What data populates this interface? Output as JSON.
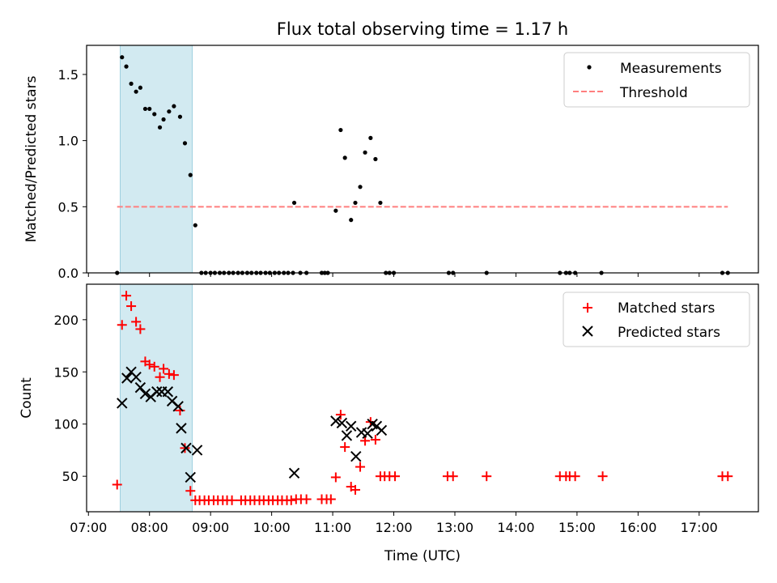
{
  "chart_data": {
    "type": "scatter",
    "title": "Flux total observing time = 1.17 h",
    "xlabel": "Time (UTC)",
    "x_unit": "hours UTC",
    "xlim": [
      6.97,
      17.97
    ],
    "x_ticks": [
      {
        "value": 7,
        "label": "07:00"
      },
      {
        "value": 8,
        "label": "08:00"
      },
      {
        "value": 9,
        "label": "09:00"
      },
      {
        "value": 10,
        "label": "10:00"
      },
      {
        "value": 11,
        "label": "11:00"
      },
      {
        "value": 12,
        "label": "12:00"
      },
      {
        "value": 13,
        "label": "13:00"
      },
      {
        "value": 14,
        "label": "14:00"
      },
      {
        "value": 15,
        "label": "15:00"
      },
      {
        "value": 16,
        "label": "16:00"
      },
      {
        "value": 17,
        "label": "17:00"
      }
    ],
    "shaded_span": [
      7.52,
      8.7
    ],
    "panels": [
      {
        "ylabel": "Matched/Predicted stars",
        "ylim": [
          0,
          1.72
        ],
        "y_ticks": [
          {
            "value": 0,
            "label": "0.0"
          },
          {
            "value": 0.5,
            "label": "0.5"
          },
          {
            "value": 1.0,
            "label": "1.0"
          },
          {
            "value": 1.5,
            "label": "1.5"
          }
        ],
        "legend": {
          "position": "top-right",
          "entries": [
            "Measurements",
            "Threshold"
          ]
        },
        "threshold": {
          "name": "Threshold",
          "value": 0.5,
          "x_range": [
            7.47,
            17.47
          ],
          "color": "#ff7f7f"
        },
        "series": [
          {
            "name": "Measurements",
            "marker": "dot",
            "color": "#000000",
            "points": [
              [
                7.47,
                0
              ],
              [
                7.55,
                1.63
              ],
              [
                7.62,
                1.56
              ],
              [
                7.7,
                1.43
              ],
              [
                7.78,
                1.37
              ],
              [
                7.85,
                1.4
              ],
              [
                7.93,
                1.24
              ],
              [
                8.0,
                1.24
              ],
              [
                8.08,
                1.2
              ],
              [
                8.17,
                1.1
              ],
              [
                8.23,
                1.16
              ],
              [
                8.32,
                1.22
              ],
              [
                8.4,
                1.26
              ],
              [
                8.5,
                1.18
              ],
              [
                8.58,
                0.98
              ],
              [
                8.67,
                0.74
              ],
              [
                8.75,
                0.36
              ],
              [
                8.85,
                0
              ],
              [
                8.92,
                0
              ],
              [
                9.0,
                0
              ],
              [
                9.07,
                0
              ],
              [
                9.15,
                0
              ],
              [
                9.22,
                0
              ],
              [
                9.3,
                0
              ],
              [
                9.37,
                0
              ],
              [
                9.45,
                0
              ],
              [
                9.52,
                0
              ],
              [
                9.6,
                0
              ],
              [
                9.67,
                0
              ],
              [
                9.75,
                0
              ],
              [
                9.82,
                0
              ],
              [
                9.9,
                0
              ],
              [
                9.97,
                0
              ],
              [
                10.05,
                0
              ],
              [
                10.12,
                0
              ],
              [
                10.2,
                0
              ],
              [
                10.27,
                0
              ],
              [
                10.35,
                0
              ],
              [
                10.37,
                0.53
              ],
              [
                10.47,
                0
              ],
              [
                10.57,
                0
              ],
              [
                10.82,
                0
              ],
              [
                10.87,
                0
              ],
              [
                10.92,
                0
              ],
              [
                11.05,
                0.47
              ],
              [
                11.13,
                1.08
              ],
              [
                11.2,
                0.87
              ],
              [
                11.3,
                0.4
              ],
              [
                11.37,
                0.53
              ],
              [
                11.45,
                0.65
              ],
              [
                11.53,
                0.91
              ],
              [
                11.62,
                1.02
              ],
              [
                11.7,
                0.86
              ],
              [
                11.78,
                0.53
              ],
              [
                11.87,
                0
              ],
              [
                11.93,
                0
              ],
              [
                12.0,
                0
              ],
              [
                12.9,
                0
              ],
              [
                12.97,
                0
              ],
              [
                13.52,
                0
              ],
              [
                14.72,
                0
              ],
              [
                14.82,
                0
              ],
              [
                14.88,
                0
              ],
              [
                14.97,
                0
              ],
              [
                15.4,
                0
              ],
              [
                17.38,
                0
              ],
              [
                17.47,
                0
              ]
            ]
          }
        ]
      },
      {
        "ylabel": "Count",
        "ylim": [
          16,
          234
        ],
        "y_ticks": [
          {
            "value": 50,
            "label": "50"
          },
          {
            "value": 100,
            "label": "100"
          },
          {
            "value": 150,
            "label": "150"
          },
          {
            "value": 200,
            "label": "200"
          }
        ],
        "legend": {
          "position": "top-right",
          "entries": [
            "Matched stars",
            "Predicted stars"
          ]
        },
        "series": [
          {
            "name": "Matched stars",
            "marker": "plus",
            "color": "#ff0000",
            "points": [
              [
                7.47,
                42
              ],
              [
                7.55,
                195
              ],
              [
                7.62,
                223
              ],
              [
                7.7,
                213
              ],
              [
                7.78,
                198
              ],
              [
                7.85,
                191
              ],
              [
                7.93,
                160
              ],
              [
                8.0,
                157
              ],
              [
                8.08,
                155
              ],
              [
                8.17,
                145
              ],
              [
                8.23,
                153
              ],
              [
                8.32,
                148
              ],
              [
                8.4,
                147
              ],
              [
                8.5,
                113
              ],
              [
                8.58,
                77
              ],
              [
                8.67,
                36
              ],
              [
                8.75,
                27
              ],
              [
                8.82,
                27
              ],
              [
                8.9,
                27
              ],
              [
                8.97,
                27
              ],
              [
                9.05,
                27
              ],
              [
                9.12,
                27
              ],
              [
                9.2,
                27
              ],
              [
                9.27,
                27
              ],
              [
                9.35,
                27
              ],
              [
                9.5,
                27
              ],
              [
                9.57,
                27
              ],
              [
                9.65,
                27
              ],
              [
                9.72,
                27
              ],
              [
                9.8,
                27
              ],
              [
                9.87,
                27
              ],
              [
                9.95,
                27
              ],
              [
                10.02,
                27
              ],
              [
                10.1,
                27
              ],
              [
                10.17,
                27
              ],
              [
                10.25,
                27
              ],
              [
                10.32,
                27
              ],
              [
                10.4,
                28
              ],
              [
                10.48,
                28
              ],
              [
                10.57,
                28
              ],
              [
                10.82,
                28
              ],
              [
                10.9,
                28
              ],
              [
                10.97,
                28
              ],
              [
                11.05,
                49
              ],
              [
                11.13,
                109
              ],
              [
                11.2,
                78
              ],
              [
                11.3,
                40
              ],
              [
                11.37,
                37
              ],
              [
                11.45,
                59
              ],
              [
                11.53,
                84
              ],
              [
                11.62,
                102
              ],
              [
                11.7,
                85
              ],
              [
                11.78,
                50
              ],
              [
                11.85,
                50
              ],
              [
                11.93,
                50
              ],
              [
                12.02,
                50
              ],
              [
                12.88,
                50
              ],
              [
                12.97,
                50
              ],
              [
                13.52,
                50
              ],
              [
                14.72,
                50
              ],
              [
                14.82,
                50
              ],
              [
                14.88,
                50
              ],
              [
                14.97,
                50
              ],
              [
                15.42,
                50
              ],
              [
                17.38,
                50
              ],
              [
                17.47,
                50
              ]
            ]
          },
          {
            "name": "Predicted stars",
            "marker": "x",
            "color": "#000000",
            "points": [
              [
                7.55,
                120
              ],
              [
                7.63,
                144
              ],
              [
                7.7,
                150
              ],
              [
                7.78,
                145
              ],
              [
                7.85,
                135
              ],
              [
                7.93,
                129
              ],
              [
                8.02,
                126
              ],
              [
                8.12,
                131
              ],
              [
                8.2,
                131
              ],
              [
                8.3,
                131
              ],
              [
                8.37,
                122
              ],
              [
                8.47,
                117
              ],
              [
                8.52,
                96
              ],
              [
                8.6,
                77
              ],
              [
                8.67,
                49
              ],
              [
                8.78,
                75
              ],
              [
                10.37,
                53
              ],
              [
                11.05,
                103
              ],
              [
                11.15,
                101
              ],
              [
                11.23,
                89
              ],
              [
                11.3,
                98
              ],
              [
                11.38,
                69
              ],
              [
                11.47,
                92
              ],
              [
                11.57,
                91
              ],
              [
                11.65,
                100
              ],
              [
                11.72,
                98
              ],
              [
                11.8,
                94
              ]
            ]
          }
        ]
      }
    ]
  }
}
